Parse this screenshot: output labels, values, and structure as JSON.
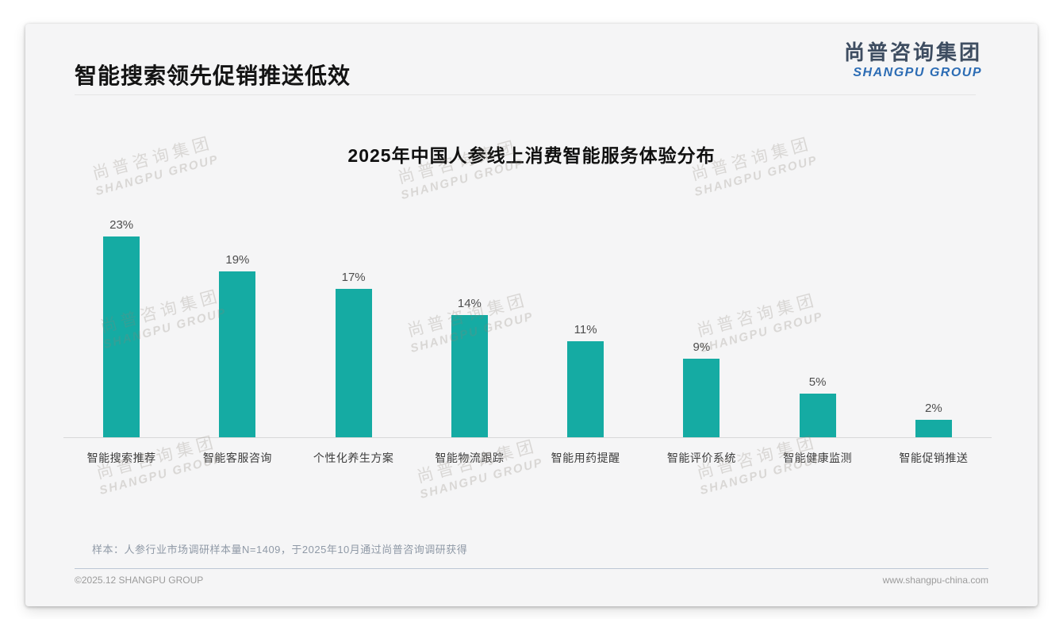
{
  "page": {
    "slide_title": "智能搜索领先促销推送低效",
    "logo": {
      "cn": "尚普咨询集团",
      "en": "SHANGPU GROUP"
    },
    "note": "样本：人参行业市场调研样本量N=1409，于2025年10月通过尚普咨询调研获得",
    "footer": {
      "left": "©2025.12 SHANGPU GROUP",
      "right": "www.shangpu-china.com"
    },
    "watermark": {
      "cn": "尚普咨询集团",
      "en": "SHANGPU GROUP"
    }
  },
  "colors": {
    "bar": "#15aba3",
    "logo_cn": "#3e4d61",
    "logo_en": "#2c6cb4",
    "card_bg": "#f5f5f6",
    "axis_line": "#d8d8d8"
  },
  "chart_data": {
    "type": "bar",
    "title": "2025年中国人参线上消费智能服务体验分布",
    "categories": [
      "智能搜索推荐",
      "智能客服咨询",
      "个性化养生方案",
      "智能物流跟踪",
      "智能用药提醒",
      "智能评价系统",
      "智能健康监测",
      "智能促销推送"
    ],
    "values": [
      23,
      19,
      17,
      14,
      11,
      9,
      5,
      2
    ],
    "value_labels": [
      "23%",
      "19%",
      "17%",
      "14%",
      "11%",
      "9%",
      "5%",
      "2%"
    ],
    "unit": "%",
    "xlabel": "",
    "ylabel": "",
    "ylim": [
      0,
      25
    ],
    "grid": false,
    "legend": null,
    "bar_color": "#15aba3"
  }
}
